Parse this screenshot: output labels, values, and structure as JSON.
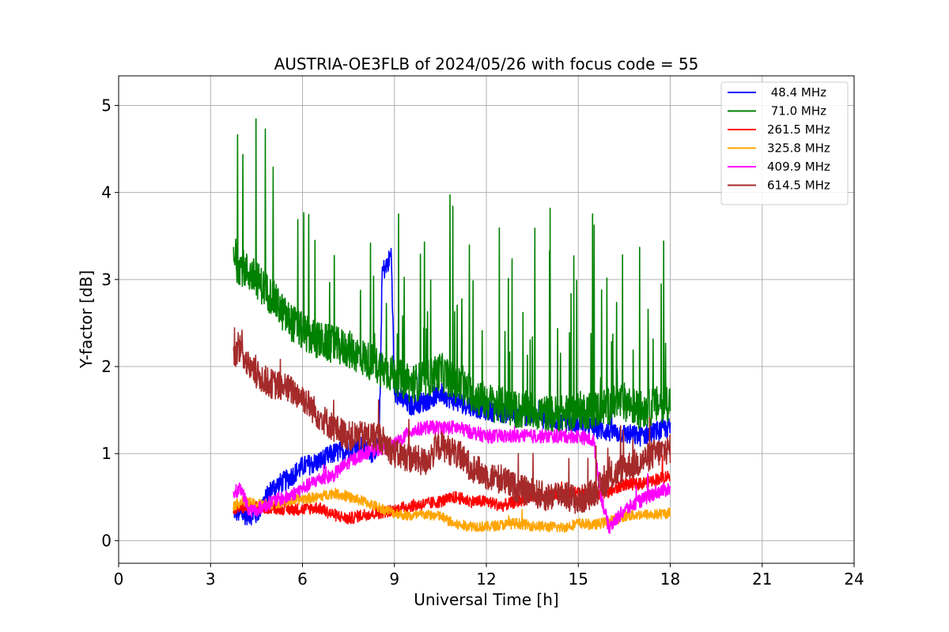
{
  "chart_data": {
    "type": "line",
    "title": "AUSTRIA-OE3FLB of 2024/05/26 with focus code = 55",
    "xlabel": "Universal Time [h]",
    "ylabel": "Y-factor [dB]",
    "xlim": [
      0,
      24
    ],
    "ylim": [
      -0.26,
      5.34
    ],
    "xticks": [
      0,
      3,
      6,
      9,
      12,
      15,
      18,
      21,
      24
    ],
    "xtick_labels": [
      "0",
      "3",
      "6",
      "9",
      "12",
      "15",
      "18",
      "21",
      "24"
    ],
    "yticks": [
      0,
      1,
      2,
      3,
      4,
      5
    ],
    "ytick_labels": [
      "0",
      "1",
      "2",
      "3",
      "4",
      "5"
    ],
    "grid": true,
    "legend_position": "top-right",
    "series": [
      {
        "name": " 48.4 MHz",
        "color": "#0000ff",
        "x": [
          3.75,
          4.0,
          4.25,
          4.5,
          4.75,
          5.0,
          5.5,
          6.0,
          6.5,
          7.0,
          7.5,
          8.0,
          8.25,
          8.5,
          8.6,
          8.75,
          8.9,
          9.0,
          9.5,
          10.0,
          10.5,
          11.0,
          12.0,
          13.0,
          14.0,
          15.0,
          16.0,
          17.0,
          18.0
        ],
        "y": [
          0.35,
          0.3,
          0.3,
          0.3,
          0.45,
          0.6,
          0.7,
          0.85,
          0.9,
          1.0,
          1.05,
          1.1,
          1.0,
          1.1,
          3.1,
          3.15,
          3.3,
          1.7,
          1.55,
          1.6,
          1.7,
          1.6,
          1.5,
          1.45,
          1.4,
          1.35,
          1.25,
          1.2,
          1.3
        ]
      },
      {
        "name": " 71.0 MHz",
        "color": "#008000",
        "x": [
          3.75,
          4.0,
          4.5,
          5.0,
          5.5,
          6.0,
          6.5,
          7.0,
          7.5,
          8.0,
          8.5,
          9.0,
          9.5,
          10.0,
          10.5,
          11.0,
          11.5,
          12.0,
          12.5,
          13.0,
          13.5,
          14.0,
          14.5,
          15.0,
          15.5,
          16.0,
          16.5,
          17.0,
          17.5,
          18.0
        ],
        "y": [
          3.2,
          3.15,
          3.0,
          2.8,
          2.55,
          2.4,
          2.3,
          2.25,
          2.2,
          2.1,
          2.0,
          1.9,
          1.8,
          1.85,
          1.95,
          1.8,
          1.7,
          1.6,
          1.55,
          1.5,
          1.5,
          1.45,
          1.45,
          1.5,
          1.5,
          1.55,
          1.6,
          1.5,
          1.55,
          1.6
        ]
      },
      {
        "name": "261.5 MHz",
        "color": "#ff0000",
        "x": [
          3.75,
          4.0,
          4.5,
          5.0,
          5.5,
          6.0,
          6.5,
          7.0,
          7.5,
          8.0,
          8.5,
          9.0,
          9.5,
          10.0,
          10.5,
          11.0,
          11.5,
          12.0,
          12.5,
          13.0,
          13.5,
          14.0,
          14.5,
          15.0,
          15.5,
          16.0,
          16.5,
          17.0,
          17.5,
          18.0
        ],
        "y": [
          0.35,
          0.38,
          0.38,
          0.38,
          0.36,
          0.36,
          0.38,
          0.3,
          0.25,
          0.3,
          0.32,
          0.35,
          0.4,
          0.42,
          0.45,
          0.5,
          0.45,
          0.45,
          0.4,
          0.45,
          0.5,
          0.5,
          0.55,
          0.55,
          0.5,
          0.55,
          0.65,
          0.65,
          0.7,
          0.75
        ]
      },
      {
        "name": "325.8 MHz",
        "color": "#ffa500",
        "x": [
          3.75,
          4.0,
          4.5,
          5.0,
          5.5,
          6.0,
          6.5,
          7.0,
          7.5,
          8.0,
          8.5,
          9.0,
          9.5,
          10.0,
          10.5,
          11.0,
          11.5,
          12.0,
          12.5,
          13.0,
          13.5,
          14.0,
          14.5,
          15.0,
          15.5,
          16.0,
          16.5,
          17.0,
          17.5,
          18.0
        ],
        "y": [
          0.4,
          0.45,
          0.42,
          0.42,
          0.45,
          0.48,
          0.5,
          0.55,
          0.5,
          0.45,
          0.38,
          0.32,
          0.28,
          0.3,
          0.28,
          0.18,
          0.17,
          0.16,
          0.18,
          0.2,
          0.17,
          0.16,
          0.15,
          0.2,
          0.18,
          0.22,
          0.28,
          0.3,
          0.3,
          0.32
        ]
      },
      {
        "name": "409.9 MHz",
        "color": "#ff00ff",
        "x": [
          3.75,
          4.0,
          4.25,
          4.5,
          5.0,
          5.5,
          6.0,
          6.5,
          7.0,
          7.5,
          8.0,
          8.5,
          9.0,
          9.5,
          10.0,
          10.5,
          11.0,
          11.5,
          12.0,
          12.5,
          13.0,
          13.5,
          14.0,
          14.5,
          15.0,
          15.5,
          15.75,
          16.0,
          16.5,
          17.0,
          17.5,
          18.0
        ],
        "y": [
          0.55,
          0.6,
          0.35,
          0.35,
          0.45,
          0.5,
          0.6,
          0.7,
          0.75,
          0.9,
          1.0,
          1.05,
          1.1,
          1.25,
          1.3,
          1.3,
          1.3,
          1.25,
          1.2,
          1.2,
          1.2,
          1.2,
          1.2,
          1.2,
          1.2,
          1.15,
          0.5,
          0.15,
          0.35,
          0.45,
          0.55,
          0.6
        ]
      },
      {
        "name": "614.5 MHz",
        "color": "#a52a2a",
        "x": [
          3.75,
          4.0,
          4.25,
          4.5,
          5.0,
          5.5,
          6.0,
          6.5,
          7.0,
          7.5,
          8.0,
          8.5,
          9.0,
          9.5,
          10.0,
          10.5,
          11.0,
          11.5,
          12.0,
          12.5,
          13.0,
          13.5,
          14.0,
          14.5,
          15.0,
          15.5,
          16.0,
          16.5,
          17.0,
          17.5,
          18.0
        ],
        "y": [
          2.1,
          2.2,
          2.0,
          1.9,
          1.8,
          1.75,
          1.65,
          1.45,
          1.3,
          1.2,
          1.2,
          1.2,
          1.0,
          0.95,
          0.9,
          1.1,
          1.0,
          0.85,
          0.75,
          0.7,
          0.6,
          0.55,
          0.5,
          0.55,
          0.45,
          0.55,
          0.7,
          0.85,
          0.9,
          1.0,
          1.05
        ]
      }
    ]
  }
}
